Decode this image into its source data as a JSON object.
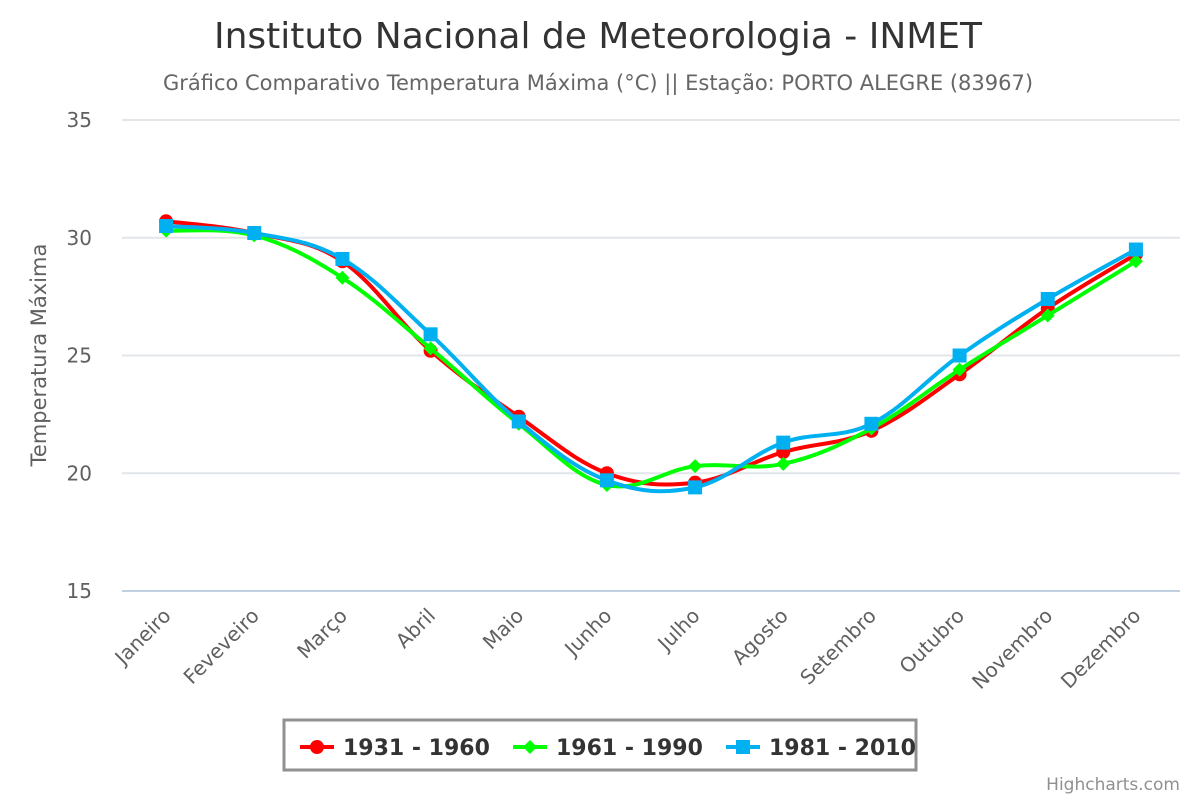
{
  "chart_data": {
    "type": "line",
    "title": "Instituto Nacional de Meteorologia - INMET",
    "subtitle": "Gráfico Comparativo Temperatura Máxima (°C) || Estação: PORTO ALEGRE (83967)",
    "ylabel": "Temperatura Máxima",
    "xlabel": "",
    "ylim": [
      15,
      35
    ],
    "yticks": [
      "15",
      "20",
      "25",
      "30",
      "35"
    ],
    "categories": [
      "Janeiro",
      "Feveveiro",
      "Março",
      "Abril",
      "Maio",
      "Junho",
      "Julho",
      "Agosto",
      "Setembro",
      "Outubro",
      "Novembro",
      "Dezembro"
    ],
    "grid": true,
    "legend_position": "bottom-center",
    "series": [
      {
        "name": "1931 - 1960",
        "color": "#ff0000",
        "marker": "circle",
        "values": [
          30.7,
          30.2,
          29.0,
          25.2,
          22.4,
          20.0,
          19.6,
          20.9,
          21.8,
          24.2,
          27.0,
          29.3
        ]
      },
      {
        "name": "1961 - 1990",
        "color": "#00ff00",
        "marker": "diamond",
        "values": [
          30.3,
          30.1,
          28.3,
          25.3,
          22.1,
          19.5,
          20.3,
          20.4,
          21.9,
          24.4,
          26.7,
          29.0
        ]
      },
      {
        "name": "1981 - 2010",
        "color": "#00b0f0",
        "marker": "square",
        "values": [
          30.5,
          30.2,
          29.1,
          25.9,
          22.2,
          19.7,
          19.4,
          21.3,
          22.1,
          25.0,
          27.4,
          29.5
        ]
      }
    ]
  },
  "credits": "Highcharts.com"
}
